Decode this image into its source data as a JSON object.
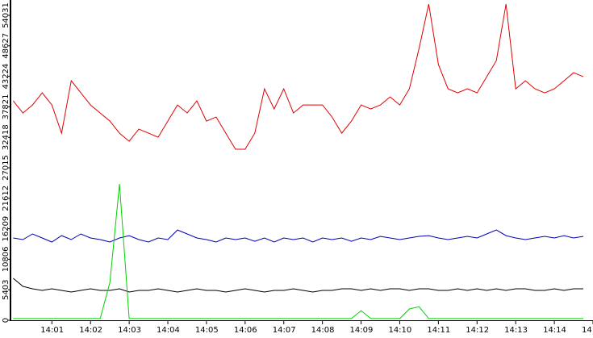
{
  "chart_data": {
    "type": "line",
    "x": [
      0,
      0.25,
      0.5,
      0.75,
      1,
      1.25,
      1.5,
      1.75,
      2,
      2.25,
      2.5,
      2.75,
      3,
      3.25,
      3.5,
      3.75,
      4,
      4.25,
      4.5,
      4.75,
      5,
      5.25,
      5.5,
      5.75,
      6,
      6.25,
      6.5,
      6.75,
      7,
      7.25,
      7.5,
      7.75,
      8,
      8.25,
      8.5,
      8.75,
      9,
      9.25,
      9.5,
      9.75,
      10,
      10.25,
      10.5,
      10.75,
      11,
      11.25,
      11.5,
      11.75,
      12,
      12.25,
      12.5,
      12.75,
      13,
      13.25,
      13.5,
      13.75,
      14,
      14.25,
      14.5,
      14.75
    ],
    "series": [
      {
        "color": "#e00000",
        "values": [
          38870,
          36730,
          38150,
          40300,
          38150,
          33150,
          42440,
          40300,
          38150,
          36730,
          35300,
          33150,
          31720,
          33870,
          33150,
          32440,
          35300,
          38150,
          36730,
          38870,
          35300,
          36010,
          33150,
          30300,
          30300,
          33150,
          41010,
          37440,
          41010,
          36730,
          38150,
          38150,
          38150,
          36010,
          33150,
          35300,
          38150,
          37440,
          38150,
          39580,
          38150,
          41010,
          48160,
          56020,
          45300,
          41010,
          40300,
          41010,
          40300,
          43160,
          46010,
          56020,
          41010,
          42440,
          41010,
          40300,
          41010,
          42440,
          43870,
          43160
        ]
      },
      {
        "color": "#0000b0",
        "values": [
          14580,
          14300,
          15290,
          14580,
          13860,
          15000,
          14300,
          15290,
          14580,
          14300,
          13860,
          14580,
          15000,
          14300,
          13860,
          14580,
          14300,
          16000,
          15290,
          14580,
          14300,
          13860,
          14580,
          14300,
          14580,
          14000,
          14580,
          13860,
          14580,
          14300,
          14580,
          13860,
          14580,
          14300,
          14580,
          14000,
          14580,
          14300,
          14870,
          14580,
          14300,
          14580,
          14870,
          15000,
          14580,
          14300,
          14580,
          14870,
          14580,
          15290,
          16000,
          15000,
          14580,
          14300,
          14580,
          14870,
          14580,
          15000,
          14580,
          14870
        ]
      },
      {
        "color": "#000000",
        "values": [
          7430,
          6000,
          5570,
          5290,
          5570,
          5290,
          5000,
          5290,
          5570,
          5290,
          5290,
          5570,
          5000,
          5290,
          5290,
          5570,
          5290,
          5000,
          5290,
          5570,
          5290,
          5290,
          5000,
          5290,
          5570,
          5290,
          5000,
          5290,
          5290,
          5570,
          5290,
          5000,
          5290,
          5290,
          5570,
          5570,
          5290,
          5570,
          5290,
          5570,
          5570,
          5290,
          5570,
          5570,
          5290,
          5290,
          5570,
          5290,
          5570,
          5290,
          5570,
          5290,
          5570,
          5570,
          5290,
          5290,
          5570,
          5290,
          5570,
          5570
        ]
      },
      {
        "color": "#00d000",
        "values": [
          300,
          300,
          300,
          300,
          300,
          300,
          300,
          300,
          300,
          300,
          6700,
          24150,
          300,
          300,
          300,
          300,
          300,
          300,
          300,
          300,
          300,
          300,
          300,
          300,
          300,
          300,
          300,
          300,
          300,
          300,
          300,
          300,
          300,
          300,
          300,
          300,
          1700,
          300,
          300,
          300,
          300,
          2000,
          2400,
          300,
          300,
          300,
          300,
          300,
          300,
          300,
          300,
          300,
          300,
          300,
          300,
          300,
          300,
          300,
          300,
          300
        ]
      }
    ],
    "xlim": [
      -0.05,
      15
    ],
    "xticks": [
      {
        "value": 1,
        "label": "14:01"
      },
      {
        "value": 2,
        "label": "14:02"
      },
      {
        "value": 3,
        "label": "14:03"
      },
      {
        "value": 4,
        "label": "14:04"
      },
      {
        "value": 5,
        "label": "14:05"
      },
      {
        "value": 6,
        "label": "14:06"
      },
      {
        "value": 7,
        "label": "14:07"
      },
      {
        "value": 8,
        "label": "14:08"
      },
      {
        "value": 9,
        "label": "14:09"
      },
      {
        "value": 10,
        "label": "14:10"
      },
      {
        "value": 11,
        "label": "14:11"
      },
      {
        "value": 12,
        "label": "14:12"
      },
      {
        "value": 13,
        "label": "14:13"
      },
      {
        "value": 14,
        "label": "14:14"
      },
      {
        "value": 15,
        "label": "14"
      }
    ],
    "ylim": [
      0,
      56750
    ],
    "yticks": [
      0,
      5403,
      10806,
      16209,
      21612,
      27015,
      32418,
      37821,
      43224,
      48627,
      54031
    ]
  }
}
